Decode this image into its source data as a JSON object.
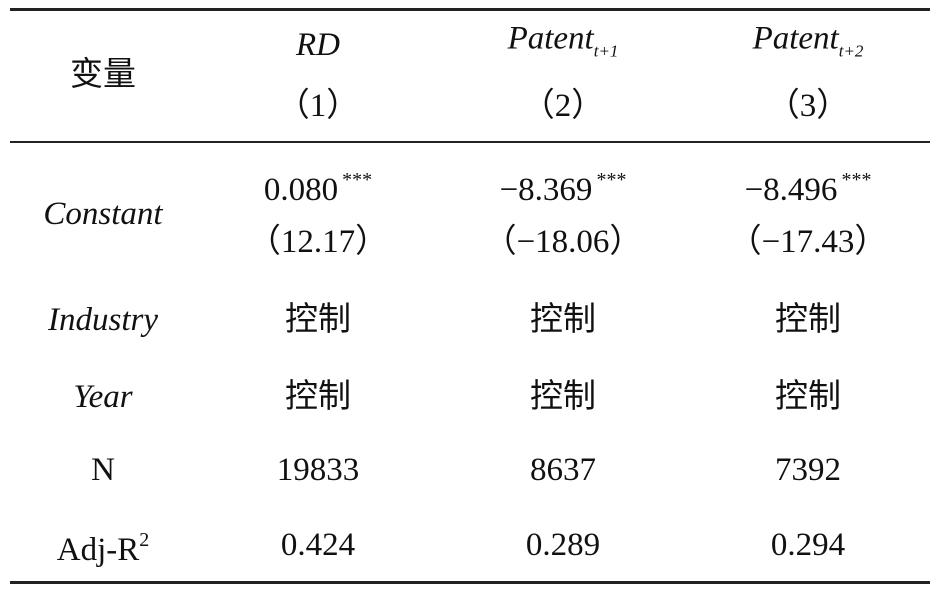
{
  "header": {
    "columns": [
      {
        "label": "变量"
      },
      {
        "label": "RD",
        "number": "（1）"
      },
      {
        "label": "Patent",
        "subscript": "t+1",
        "number": "（2）"
      },
      {
        "label": "Patent",
        "subscript": "t+2",
        "number": "（3）"
      }
    ]
  },
  "rows": [
    {
      "label": "Constant",
      "cells": [
        {
          "value": "0.080",
          "stars": "***",
          "t": "（12.17）"
        },
        {
          "value": "−8.369",
          "stars": "***",
          "t": "（−18.06）"
        },
        {
          "value": "−8.496",
          "stars": "***",
          "t": "（−17.43）"
        }
      ]
    },
    {
      "label": "Industry",
      "cells": [
        "控制",
        "控制",
        "控制"
      ]
    },
    {
      "label": "Year",
      "cells": [
        "控制",
        "控制",
        "控制"
      ]
    },
    {
      "label": "N",
      "cells": [
        "19833",
        "8637",
        "7392"
      ]
    },
    {
      "label": "Adj-R",
      "label_sup": "2",
      "cells": [
        "0.424",
        "0.289",
        "0.294"
      ]
    }
  ]
}
